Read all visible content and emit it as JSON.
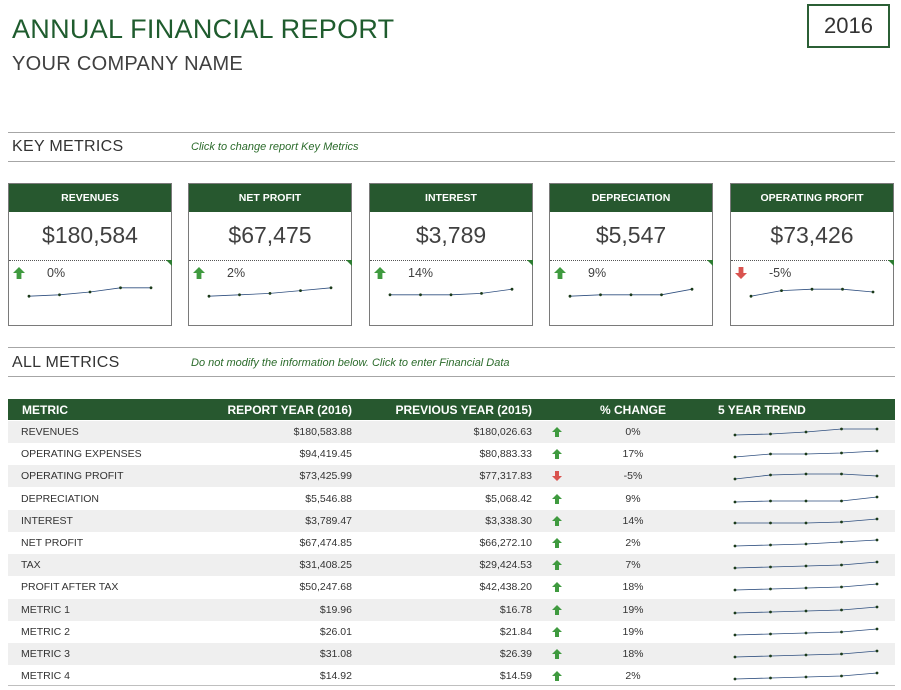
{
  "header": {
    "title": "ANNUAL FINANCIAL REPORT",
    "company": "YOUR COMPANY NAME",
    "year": "2016"
  },
  "key_metrics_section": {
    "title": "KEY METRICS",
    "hint": "Click to change report Key Metrics"
  },
  "key_metrics": [
    {
      "label": "REVENUES",
      "value": "$180,584",
      "change": "0%",
      "direction": "up",
      "trend": [
        2,
        3,
        5,
        8,
        8
      ]
    },
    {
      "label": "NET PROFIT",
      "value": "$67,475",
      "change": "2%",
      "direction": "up",
      "trend": [
        2,
        3,
        4,
        6,
        8
      ]
    },
    {
      "label": "INTEREST",
      "value": "$3,789",
      "change": "14%",
      "direction": "up",
      "trend": [
        3,
        3,
        3,
        4,
        7
      ]
    },
    {
      "label": "DEPRECIATION",
      "value": "$5,547",
      "change": "9%",
      "direction": "up",
      "trend": [
        2,
        3,
        3,
        3,
        7
      ]
    },
    {
      "label": "OPERATING PROFIT",
      "value": "$73,426",
      "change": "-5%",
      "direction": "down",
      "trend": [
        2,
        6,
        7,
        7,
        5
      ]
    }
  ],
  "all_metrics_section": {
    "title": "ALL METRICS",
    "hint": "Do not modify the information below. Click to enter Financial Data"
  },
  "table": {
    "columns": [
      "METRIC",
      "REPORT YEAR (2016)",
      "PREVIOUS YEAR (2015)",
      "% CHANGE",
      "5 YEAR TREND"
    ],
    "rows": [
      {
        "metric": "REVENUES",
        "report": "$180,583.88",
        "previous": "$180,026.63",
        "direction": "up",
        "change": "0%",
        "trend": [
          2,
          3,
          5,
          8,
          8
        ]
      },
      {
        "metric": "OPERATING EXPENSES",
        "report": "$94,419.45",
        "previous": "$80,883.33",
        "direction": "up",
        "change": "17%",
        "trend": [
          2,
          5,
          5,
          6,
          8
        ]
      },
      {
        "metric": "OPERATING PROFIT",
        "report": "$73,425.99",
        "previous": "$77,317.83",
        "direction": "down",
        "change": "-5%",
        "trend": [
          2,
          6,
          7,
          7,
          5
        ]
      },
      {
        "metric": "DEPRECIATION",
        "report": "$5,546.88",
        "previous": "$5,068.42",
        "direction": "up",
        "change": "9%",
        "trend": [
          2,
          3,
          3,
          3,
          7
        ]
      },
      {
        "metric": "INTEREST",
        "report": "$3,789.47",
        "previous": "$3,338.30",
        "direction": "up",
        "change": "14%",
        "trend": [
          3,
          3,
          3,
          4,
          7
        ]
      },
      {
        "metric": "NET PROFIT",
        "report": "$67,474.85",
        "previous": "$66,272.10",
        "direction": "up",
        "change": "2%",
        "trend": [
          2,
          3,
          4,
          6,
          8
        ]
      },
      {
        "metric": "TAX",
        "report": "$31,408.25",
        "previous": "$29,424.53",
        "direction": "up",
        "change": "7%",
        "trend": [
          2,
          3,
          4,
          5,
          8
        ]
      },
      {
        "metric": "PROFIT AFTER TAX",
        "report": "$50,247.68",
        "previous": "$42,438.20",
        "direction": "up",
        "change": "18%",
        "trend": [
          2,
          3,
          4,
          5,
          8
        ]
      },
      {
        "metric": "METRIC 1",
        "report": "$19.96",
        "previous": "$16.78",
        "direction": "up",
        "change": "19%",
        "trend": [
          2,
          3,
          4,
          5,
          8
        ]
      },
      {
        "metric": "METRIC 2",
        "report": "$26.01",
        "previous": "$21.84",
        "direction": "up",
        "change": "19%",
        "trend": [
          2,
          3,
          4,
          5,
          8
        ]
      },
      {
        "metric": "METRIC 3",
        "report": "$31.08",
        "previous": "$26.39",
        "direction": "up",
        "change": "18%",
        "trend": [
          2,
          3,
          4,
          5,
          8
        ]
      },
      {
        "metric": "METRIC 4",
        "report": "$14.92",
        "previous": "$14.59",
        "direction": "up",
        "change": "2%",
        "trend": [
          2,
          3,
          4,
          5,
          8
        ]
      }
    ]
  },
  "colors": {
    "brand_green": "#27582f",
    "up_arrow": "#3f9a3f",
    "down_arrow": "#d9534f",
    "sparkline": "#2f4f7f"
  }
}
